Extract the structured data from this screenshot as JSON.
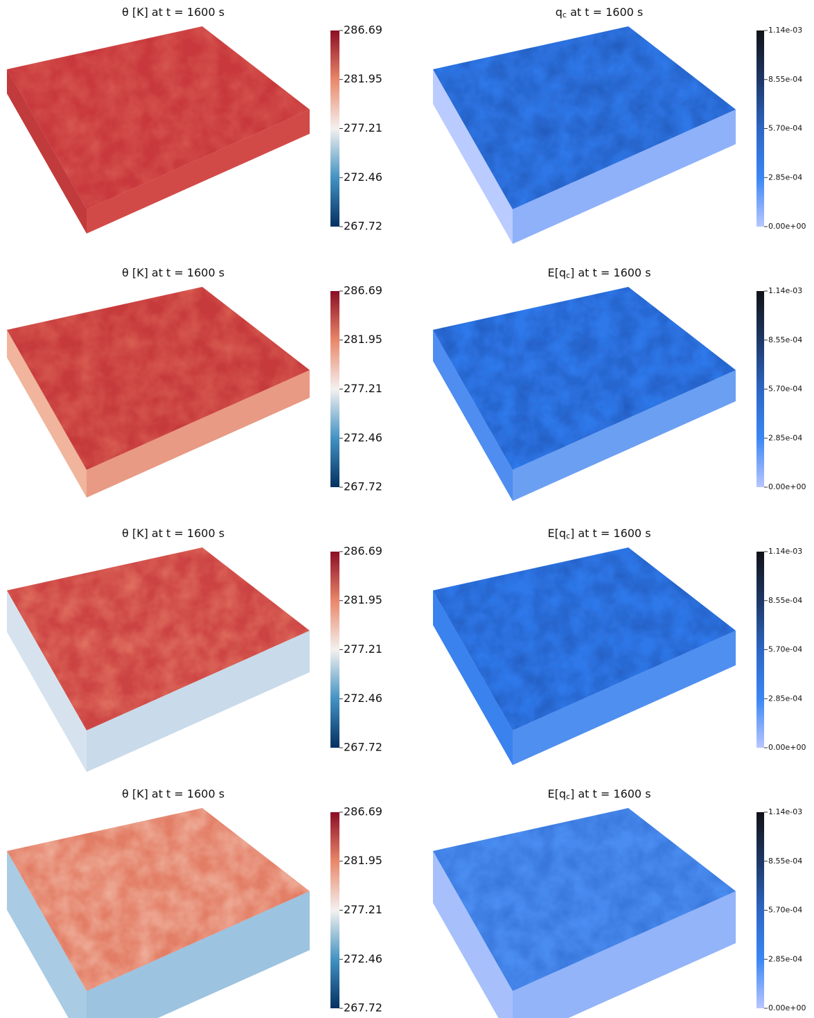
{
  "panels": [
    {
      "title": {
        "before": "θ [K] at t = 1600 s",
        "sub": "",
        "after": ""
      },
      "colorbar": {
        "lim": [
          267.72,
          286.69
        ],
        "ticks": [
          286.69,
          281.95,
          277.21,
          272.46,
          267.72
        ],
        "colors": [
          "#053061",
          "#4393c3",
          "#f4f1ef",
          "#e9876a",
          "#8c0d25"
        ]
      }
    },
    {
      "title": {
        "before": "q",
        "sub": "c",
        "after": " at t = 1600 s"
      },
      "colorbar": {
        "lim": [
          0,
          0.00114
        ],
        "ticks": [
          {
            "value": 0.00114,
            "label": "1.14e-03"
          },
          {
            "value": 0.000855,
            "label": "8.55e-04"
          },
          {
            "value": 0.00057,
            "label": "5.70e-04"
          },
          {
            "value": 0.000285,
            "label": "2.85e-04"
          },
          {
            "value": 0,
            "label": "0.00e+00"
          }
        ],
        "colors": [
          "#b8c6ff",
          "#3a86f5",
          "#2c66c4",
          "#1d3766",
          "#111216"
        ]
      }
    },
    {
      "title": {
        "before": "θ [K] at t = 1600 s",
        "sub": "",
        "after": ""
      },
      "colorbar": {
        "lim": [
          267.72,
          286.69
        ],
        "ticks": [
          286.69,
          281.95,
          277.21,
          272.46,
          267.72
        ],
        "colors": [
          "#053061",
          "#4393c3",
          "#f4f1ef",
          "#e9876a",
          "#8c0d25"
        ]
      }
    },
    {
      "title": {
        "before": "E[q",
        "sub": "c",
        "after": "] at t = 1600 s"
      },
      "colorbar": {
        "lim": [
          0,
          0.00114
        ],
        "ticks": [
          {
            "value": 0.00114,
            "label": "1.14e-03"
          },
          {
            "value": 0.000855,
            "label": "8.55e-04"
          },
          {
            "value": 0.00057,
            "label": "5.70e-04"
          },
          {
            "value": 0.000285,
            "label": "2.85e-04"
          },
          {
            "value": 0,
            "label": "0.00e+00"
          }
        ],
        "colors": [
          "#b8c6ff",
          "#3a86f5",
          "#2c66c4",
          "#1d3766",
          "#111216"
        ]
      }
    },
    {
      "title": {
        "before": "θ [K] at t = 1600 s",
        "sub": "",
        "after": ""
      },
      "colorbar": {
        "lim": [
          267.72,
          286.69
        ],
        "ticks": [
          286.69,
          281.95,
          277.21,
          272.46,
          267.72
        ],
        "colors": [
          "#053061",
          "#4393c3",
          "#f4f1ef",
          "#e9876a",
          "#8c0d25"
        ]
      }
    },
    {
      "title": {
        "before": "E[q",
        "sub": "c",
        "after": "] at t = 1600 s"
      },
      "colorbar": {
        "lim": [
          0,
          0.00114
        ],
        "ticks": [
          {
            "value": 0.00114,
            "label": "1.14e-03"
          },
          {
            "value": 0.000855,
            "label": "8.55e-04"
          },
          {
            "value": 0.00057,
            "label": "5.70e-04"
          },
          {
            "value": 0.000285,
            "label": "2.85e-04"
          },
          {
            "value": 0,
            "label": "0.00e+00"
          }
        ],
        "colors": [
          "#b8c6ff",
          "#3a86f5",
          "#2c66c4",
          "#1d3766",
          "#111216"
        ]
      }
    },
    {
      "title": {
        "before": "θ [K] at t = 1600 s",
        "sub": "",
        "after": ""
      },
      "colorbar": {
        "lim": [
          267.72,
          286.69
        ],
        "ticks": [
          286.69,
          281.95,
          277.21,
          272.46,
          267.72
        ],
        "colors": [
          "#053061",
          "#4393c3",
          "#f4f1ef",
          "#e9876a",
          "#8c0d25"
        ]
      }
    },
    {
      "title": {
        "before": "E[q",
        "sub": "c",
        "after": "] at t = 1600 s"
      },
      "colorbar": {
        "lim": [
          0,
          0.00114
        ],
        "ticks": [
          {
            "value": 0.00114,
            "label": "1.14e-03"
          },
          {
            "value": 0.000855,
            "label": "8.55e-04"
          },
          {
            "value": 0.00057,
            "label": "5.70e-04"
          },
          {
            "value": 0.000285,
            "label": "2.85e-04"
          },
          {
            "value": 0,
            "label": "0.00e+00"
          }
        ],
        "colors": [
          "#b8c6ff",
          "#3a86f5",
          "#2c66c4",
          "#1d3766",
          "#111216"
        ]
      }
    }
  ]
}
